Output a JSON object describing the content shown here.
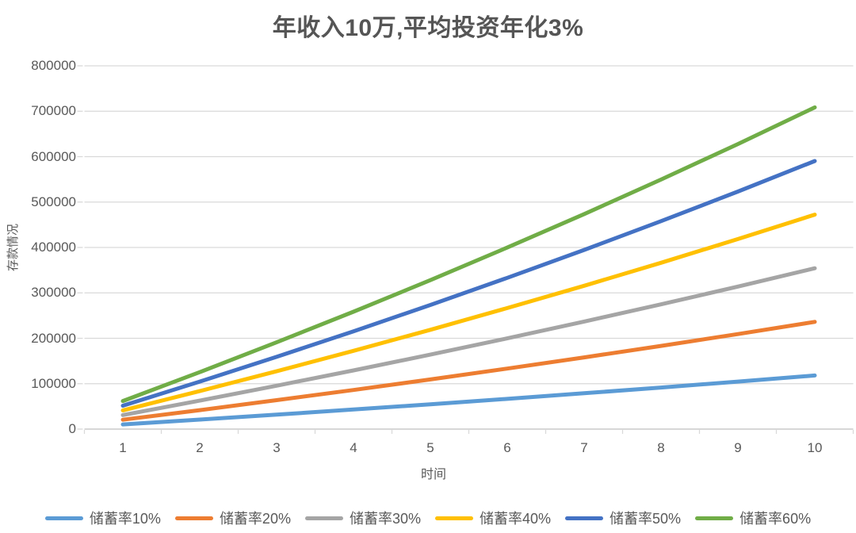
{
  "title": "年收入10万,平均投资年化3%",
  "colors": {
    "title_text": "#555555",
    "axis_text": "#595959",
    "gridline": "#D9D9D9",
    "zero_axis_line": "#BFBFBF",
    "background": "#FFFFFF"
  },
  "chart_data": {
    "type": "line",
    "title": "年收入10万,平均投资年化3%",
    "xlabel": "时间",
    "ylabel": "存款情况",
    "categories": [
      1,
      2,
      3,
      4,
      5,
      6,
      7,
      8,
      9,
      10
    ],
    "ylim": [
      0,
      800000
    ],
    "y_tick_step": 100000,
    "y_ticks": [
      0,
      100000,
      200000,
      300000,
      400000,
      500000,
      600000,
      700000,
      800000
    ],
    "grid": "horizontal",
    "legend_position": "bottom",
    "series": [
      {
        "name": "储蓄率10%",
        "color": "#5B9BD5",
        "values": [
          10300,
          20909,
          31836,
          43091,
          54684,
          66625,
          78923,
          91591,
          104639,
          118078
        ]
      },
      {
        "name": "储蓄率20%",
        "color": "#ED7D31",
        "values": [
          20600,
          41818,
          63673,
          86183,
          109368,
          133249,
          157847,
          183182,
          209278,
          236156
        ]
      },
      {
        "name": "储蓄率30%",
        "color": "#A5A5A5",
        "values": [
          30900,
          62727,
          95509,
          129274,
          164052,
          199874,
          236770,
          274773,
          313916,
          354234
        ]
      },
      {
        "name": "储蓄率40%",
        "color": "#FFC000",
        "values": [
          41200,
          83636,
          127345,
          172365,
          218736,
          266498,
          315693,
          366364,
          418555,
          472312
        ]
      },
      {
        "name": "储蓄率50%",
        "color": "#4472C4",
        "values": [
          51500,
          104545,
          159181,
          215457,
          273421,
          333123,
          394617,
          457955,
          523194,
          590390
        ]
      },
      {
        "name": "储蓄率60%",
        "color": "#70AD47",
        "values": [
          61800,
          125454,
          191018,
          258548,
          328105,
          399748,
          473540,
          549546,
          627833,
          708468
        ]
      }
    ]
  }
}
